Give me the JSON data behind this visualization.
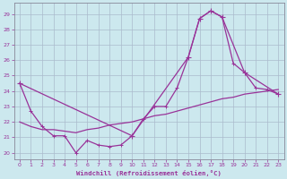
{
  "bg_color": "#cce8ee",
  "line_color": "#993399",
  "grid_color": "#aabbcc",
  "xlabel": "Windchill (Refroidissement éolien,°C)",
  "xticks": [
    0,
    1,
    2,
    3,
    4,
    5,
    6,
    7,
    8,
    9,
    10,
    11,
    12,
    13,
    14,
    15,
    16,
    17,
    18,
    19,
    20,
    21,
    22,
    23
  ],
  "yticks": [
    20,
    21,
    22,
    23,
    24,
    25,
    26,
    27,
    28,
    29
  ],
  "ylim": [
    19.6,
    29.7
  ],
  "xlim": [
    -0.5,
    23.5
  ],
  "series_dense_x": [
    0,
    1,
    2,
    3,
    4,
    5,
    6,
    7,
    8,
    9,
    10,
    11,
    12,
    13,
    14,
    15,
    16,
    17,
    18,
    19,
    20,
    21,
    22,
    23
  ],
  "series_dense_y": [
    24.5,
    22.7,
    21.7,
    21.1,
    21.1,
    20.0,
    20.8,
    20.5,
    20.4,
    20.5,
    21.1,
    22.2,
    23.0,
    23.0,
    24.2,
    26.2,
    28.7,
    29.2,
    28.8,
    25.8,
    25.2,
    24.2,
    24.1,
    23.8
  ],
  "series_sparse_x": [
    0,
    10,
    15,
    16,
    17,
    18,
    20,
    23
  ],
  "series_sparse_y": [
    24.5,
    21.1,
    26.2,
    28.7,
    29.2,
    28.8,
    25.2,
    23.8
  ],
  "series_smooth_x": [
    0,
    1,
    2,
    3,
    4,
    5,
    6,
    7,
    8,
    9,
    10,
    11,
    12,
    13,
    14,
    15,
    16,
    17,
    18,
    19,
    20,
    21,
    22,
    23
  ],
  "series_smooth_y": [
    22.0,
    21.7,
    21.5,
    21.5,
    21.4,
    21.3,
    21.5,
    21.6,
    21.8,
    21.9,
    22.0,
    22.2,
    22.4,
    22.5,
    22.7,
    22.9,
    23.1,
    23.3,
    23.5,
    23.6,
    23.8,
    23.9,
    24.0,
    24.1
  ]
}
